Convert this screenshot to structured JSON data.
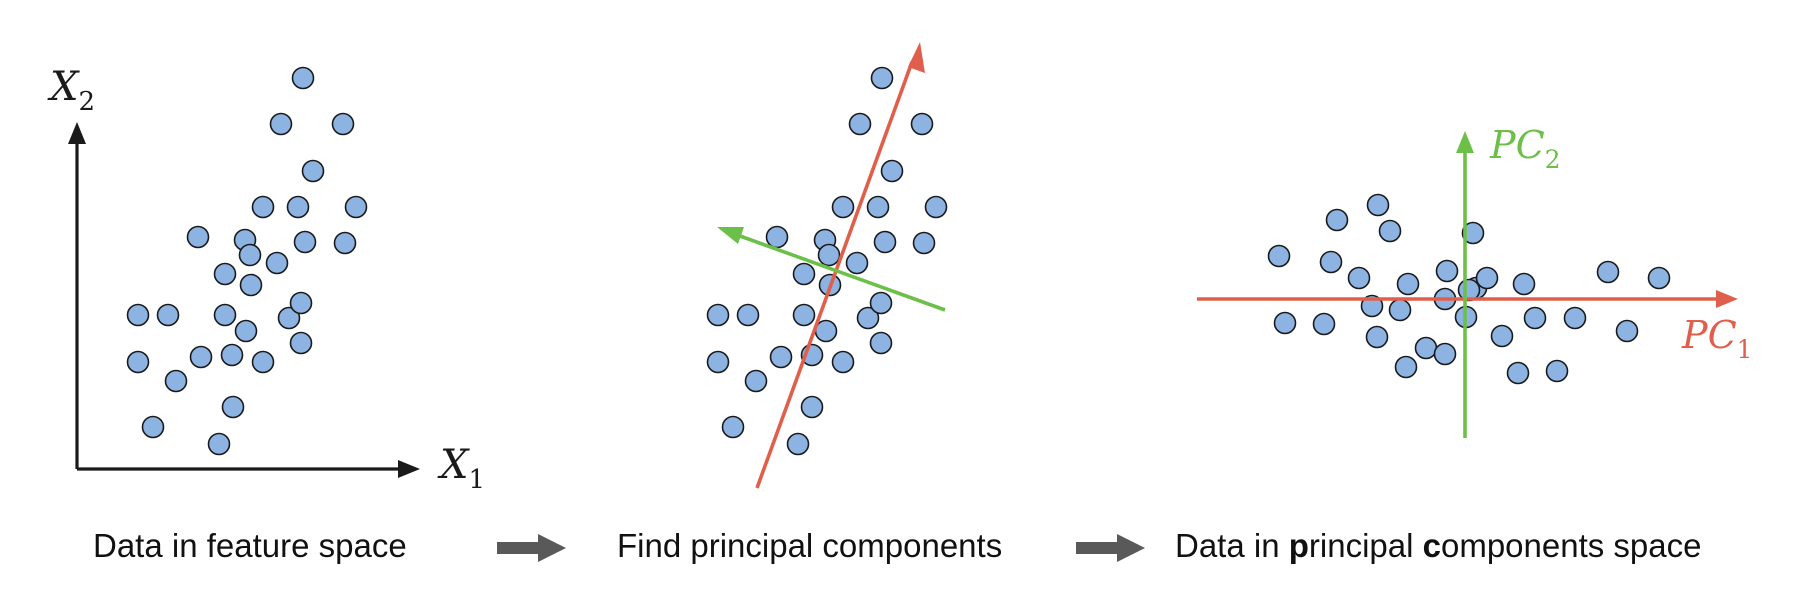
{
  "colors": {
    "point_fill": "#8db3e2",
    "point_stroke": "#1a1a1a",
    "axis": "#1a1a1a",
    "pc1": "#e05f4c",
    "pc2": "#6cc04a",
    "flow_arrow": "#595959"
  },
  "panels": {
    "feature_space": {
      "x_label": {
        "base": "X",
        "sub": "1"
      },
      "y_label": {
        "base": "X",
        "sub": "2"
      }
    },
    "pcs": {
      "pc1_label": {
        "base": "PC",
        "sub": "1"
      },
      "pc2_label": {
        "base": "PC",
        "sub": "2"
      }
    }
  },
  "captions": {
    "step1": "Data in feature space",
    "step2": "Find principal components",
    "step3": {
      "t1": "Data in ",
      "b1": "p",
      "t2": "rincipal ",
      "b2": "c",
      "t3": "omponents space"
    }
  },
  "icons": [
    "right-arrow-icon"
  ]
}
